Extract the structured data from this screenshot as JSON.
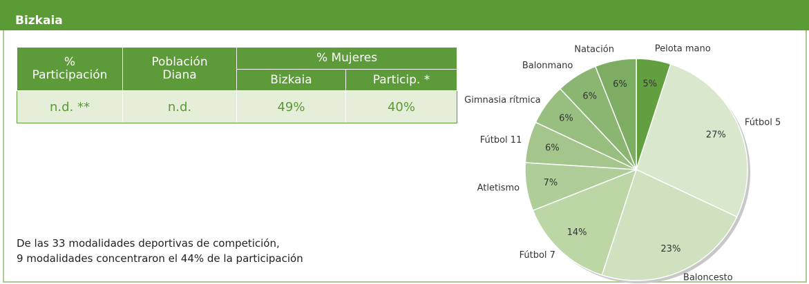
{
  "header": {
    "title": "Bizkaia"
  },
  "table": {
    "columns": [
      [
        "%",
        "Participación"
      ],
      [
        "Población",
        "Diana"
      ]
    ],
    "group": "% Mujeres",
    "subcolumns": [
      "Bizkaia",
      "Particip. *"
    ],
    "rows": [
      [
        "n.d. **",
        "n.d.",
        "49%",
        "40%"
      ]
    ]
  },
  "chart_data": {
    "type": "pie",
    "categories": [
      "Pelota mano",
      "Fútbol 5",
      "Baloncesto",
      "Fútbol 7",
      "Atletismo",
      "Fútbol 11",
      "Gimnasia rítmica",
      "Balonmano",
      "Natación"
    ],
    "values": [
      5,
      27,
      23,
      14,
      7,
      6,
      6,
      6,
      6
    ],
    "value_labels": [
      "5%",
      "27%",
      "23%",
      "14%",
      "7%",
      "6%",
      "6%",
      "6%",
      "6%"
    ],
    "colors": [
      "#62a03f",
      "#d9e7cd",
      "#cfe1bf",
      "#bcd6a6",
      "#aecd98",
      "#a4c68c",
      "#98bf7f",
      "#8bb671",
      "#7dad62"
    ]
  },
  "note": [
    "De las 33 modalidades deportivas de competición,",
    "9 modalidades concentraron el 44% de la participación"
  ]
}
